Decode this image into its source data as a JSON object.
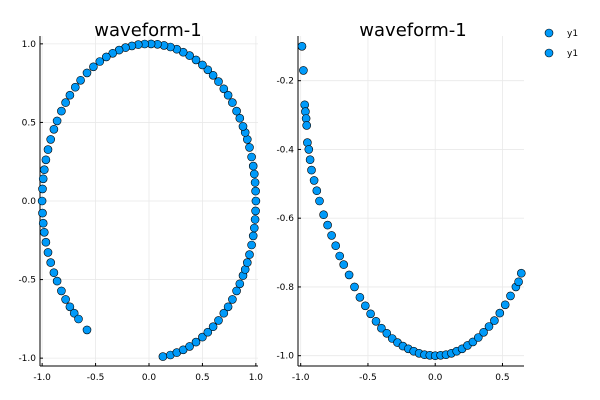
{
  "chart_data": [
    {
      "type": "scatter",
      "title": "waveform-1",
      "xlabel": "",
      "ylabel": "",
      "xlim": [
        -1.02,
        1.02
      ],
      "ylim": [
        -1.05,
        1.05
      ],
      "xticks": [
        -1.0,
        -0.5,
        0.0,
        0.5,
        1.0
      ],
      "xtick_labels": [
        "-1.0",
        "-0.5",
        "0.0",
        "0.5",
        "1.0"
      ],
      "yticks": [
        -1.0,
        -0.5,
        0.0,
        0.5,
        1.0
      ],
      "ytick_labels": [
        "-1.0",
        "-0.5",
        "0.0",
        "0.5",
        "1.0"
      ],
      "grid": true,
      "marker_color": "#009AF9",
      "series": [
        {
          "name": "y1",
          "points": [
            [
              0.13,
              -0.99
            ],
            [
              0.2,
              -0.98
            ],
            [
              0.26,
              -0.965
            ],
            [
              0.32,
              -0.947
            ],
            [
              0.38,
              -0.925
            ],
            [
              0.44,
              -0.898
            ],
            [
              0.5,
              -0.866
            ],
            [
              0.55,
              -0.835
            ],
            [
              0.6,
              -0.8
            ],
            [
              0.65,
              -0.76
            ],
            [
              0.7,
              -0.714
            ],
            [
              0.74,
              -0.673
            ],
            [
              0.78,
              -0.626
            ],
            [
              0.82,
              -0.572
            ],
            [
              0.85,
              -0.527
            ],
            [
              0.88,
              -0.475
            ],
            [
              0.9,
              -0.436
            ],
            [
              0.92,
              -0.392
            ],
            [
              0.94,
              -0.341
            ],
            [
              0.96,
              -0.28
            ],
            [
              0.975,
              -0.222
            ],
            [
              0.985,
              -0.172
            ],
            [
              0.993,
              -0.118
            ],
            [
              0.998,
              -0.063
            ],
            [
              1.0,
              0.0
            ],
            [
              0.998,
              0.063
            ],
            [
              0.993,
              0.118
            ],
            [
              0.985,
              0.172
            ],
            [
              0.975,
              0.222
            ],
            [
              0.96,
              0.28
            ],
            [
              0.94,
              0.341
            ],
            [
              0.92,
              0.392
            ],
            [
              0.9,
              0.436
            ],
            [
              0.88,
              0.475
            ],
            [
              0.85,
              0.527
            ],
            [
              0.82,
              0.572
            ],
            [
              0.78,
              0.626
            ],
            [
              0.74,
              0.673
            ],
            [
              0.7,
              0.714
            ],
            [
              0.65,
              0.76
            ],
            [
              0.6,
              0.8
            ],
            [
              0.55,
              0.835
            ],
            [
              0.5,
              0.866
            ],
            [
              0.44,
              0.898
            ],
            [
              0.38,
              0.925
            ],
            [
              0.32,
              0.947
            ],
            [
              0.26,
              0.966
            ],
            [
              0.2,
              0.98
            ],
            [
              0.14,
              0.99
            ],
            [
              0.08,
              0.997
            ],
            [
              0.02,
              1.0
            ],
            [
              -0.04,
              0.999
            ],
            [
              -0.1,
              0.995
            ],
            [
              -0.16,
              0.987
            ],
            [
              -0.22,
              0.976
            ],
            [
              -0.28,
              0.96
            ],
            [
              -0.34,
              0.94
            ],
            [
              -0.4,
              0.917
            ],
            [
              -0.46,
              0.888
            ],
            [
              -0.52,
              0.854
            ],
            [
              -0.58,
              0.815
            ],
            [
              -0.64,
              0.768
            ],
            [
              -0.69,
              0.724
            ],
            [
              -0.74,
              0.673
            ],
            [
              -0.78,
              0.626
            ],
            [
              -0.82,
              0.572
            ],
            [
              -0.86,
              0.51
            ],
            [
              -0.89,
              0.456
            ],
            [
              -0.92,
              0.392
            ],
            [
              -0.945,
              0.327
            ],
            [
              -0.965,
              0.262
            ],
            [
              -0.98,
              0.199
            ],
            [
              -0.99,
              0.141
            ],
            [
              -0.997,
              0.077
            ],
            [
              -1.0,
              0.0
            ],
            [
              -0.997,
              -0.077
            ],
            [
              -0.99,
              -0.141
            ],
            [
              -0.98,
              -0.199
            ],
            [
              -0.965,
              -0.262
            ],
            [
              -0.945,
              -0.327
            ],
            [
              -0.92,
              -0.392
            ],
            [
              -0.89,
              -0.456
            ],
            [
              -0.86,
              -0.51
            ],
            [
              -0.82,
              -0.572
            ],
            [
              -0.78,
              -0.626
            ],
            [
              -0.74,
              -0.673
            ],
            [
              -0.7,
              -0.714
            ],
            [
              -0.66,
              -0.751
            ],
            [
              -0.58,
              -0.82
            ]
          ]
        }
      ]
    },
    {
      "type": "scatter",
      "title": "waveform-1",
      "xlabel": "",
      "ylabel": "",
      "xlim": [
        -1.02,
        0.66
      ],
      "ylim": [
        -1.03,
        -0.07
      ],
      "xticks": [
        -1.0,
        -0.5,
        0.0,
        0.5
      ],
      "xtick_labels": [
        "-1.0",
        "-0.5",
        "0.0",
        "0.5"
      ],
      "yticks": [
        -1.0,
        -0.8,
        -0.6,
        -0.4,
        -0.2
      ],
      "ytick_labels": [
        "-1.0",
        "-0.8",
        "-0.6",
        "-0.4",
        "-0.2"
      ],
      "grid": true,
      "legend_position": "top-right (outside)",
      "legend": [
        "y1",
        "y1"
      ],
      "marker_color": "#009AF9",
      "series": [
        {
          "name": "y1",
          "points": [
            [
              -0.99,
              -0.1
            ],
            [
              -0.98,
              -0.17
            ],
            [
              -0.97,
              -0.27
            ],
            [
              -0.965,
              -0.29
            ],
            [
              -0.96,
              -0.31
            ],
            [
              -0.955,
              -0.33
            ],
            [
              -0.95,
              -0.38
            ],
            [
              -0.94,
              -0.4
            ],
            [
              -0.93,
              -0.43
            ],
            [
              -0.92,
              -0.46
            ],
            [
              -0.9,
              -0.49
            ],
            [
              -0.88,
              -0.52
            ],
            [
              -0.86,
              -0.55
            ],
            [
              -0.83,
              -0.59
            ],
            [
              -0.8,
              -0.62
            ],
            [
              -0.77,
              -0.65
            ],
            [
              -0.74,
              -0.68
            ],
            [
              -0.71,
              -0.71
            ],
            [
              -0.68,
              -0.735
            ],
            [
              -0.64,
              -0.765
            ],
            [
              -0.6,
              -0.8
            ],
            [
              -0.56,
              -0.83
            ],
            [
              -0.52,
              -0.855
            ],
            [
              -0.48,
              -0.878
            ],
            [
              -0.44,
              -0.9
            ],
            [
              -0.4,
              -0.92
            ],
            [
              -0.36,
              -0.935
            ],
            [
              -0.32,
              -0.95
            ],
            [
              -0.28,
              -0.962
            ],
            [
              -0.24,
              -0.972
            ],
            [
              -0.2,
              -0.98
            ],
            [
              -0.16,
              -0.987
            ],
            [
              -0.12,
              -0.993
            ],
            [
              -0.08,
              -0.997
            ],
            [
              -0.04,
              -0.999
            ],
            [
              0.0,
              -1.0
            ],
            [
              0.04,
              -0.999
            ],
            [
              0.08,
              -0.997
            ],
            [
              0.12,
              -0.993
            ],
            [
              0.16,
              -0.987
            ],
            [
              0.2,
              -0.98
            ],
            [
              0.24,
              -0.97
            ],
            [
              0.28,
              -0.96
            ],
            [
              0.32,
              -0.947
            ],
            [
              0.36,
              -0.932
            ],
            [
              0.4,
              -0.915
            ],
            [
              0.44,
              -0.898
            ],
            [
              0.48,
              -0.876
            ],
            [
              0.52,
              -0.852
            ],
            [
              0.56,
              -0.826
            ],
            [
              0.6,
              -0.8
            ],
            [
              0.62,
              -0.785
            ],
            [
              0.64,
              -0.76
            ]
          ]
        }
      ]
    }
  ]
}
